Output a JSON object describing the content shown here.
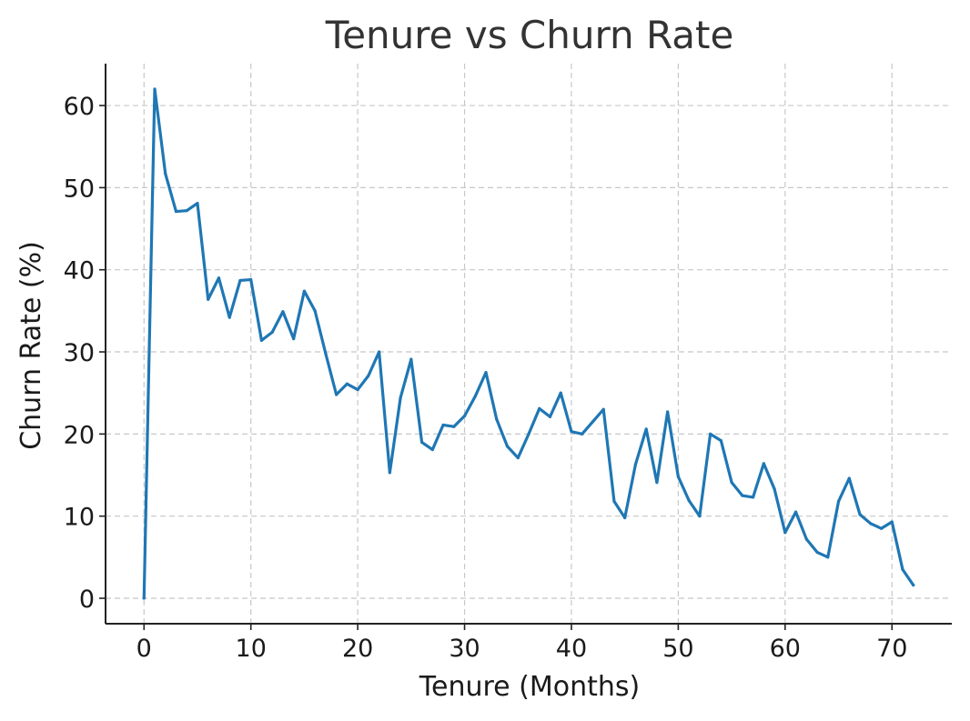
{
  "chart_data": {
    "type": "line",
    "title": "Tenure vs Churn Rate",
    "xlabel": "Tenure (Months)",
    "ylabel": "Churn Rate (%)",
    "xlim": [
      -3.6,
      75.6
    ],
    "ylim": [
      -3.1,
      65.1
    ],
    "xticks": [
      0,
      10,
      20,
      30,
      40,
      50,
      60,
      70
    ],
    "yticks": [
      0,
      10,
      20,
      30,
      40,
      50,
      60
    ],
    "grid": true,
    "line_color": "#1f77b4",
    "series": [
      {
        "x": [
          0,
          1,
          2,
          3,
          4,
          5,
          6,
          7,
          8,
          9,
          10,
          11,
          12,
          13,
          14,
          15,
          16,
          17,
          18,
          19,
          20,
          21,
          22,
          23,
          24,
          25,
          26,
          27,
          28,
          29,
          30,
          31,
          32,
          33,
          34,
          35,
          36,
          37,
          38,
          39,
          40,
          41,
          42,
          43,
          44,
          45,
          46,
          47,
          48,
          49,
          50,
          51,
          52,
          53,
          54,
          55,
          56,
          57,
          58,
          59,
          60,
          61,
          62,
          63,
          64,
          65,
          66,
          67,
          68,
          69,
          70,
          71,
          72
        ],
        "values": [
          0,
          62.0,
          51.7,
          47.1,
          47.2,
          48.1,
          36.4,
          39.0,
          34.2,
          38.7,
          38.8,
          31.4,
          32.4,
          34.9,
          31.6,
          37.4,
          35.0,
          29.8,
          24.8,
          26.1,
          25.4,
          27.1,
          30.0,
          15.3,
          24.4,
          29.1,
          19.0,
          18.1,
          21.1,
          20.9,
          22.2,
          24.6,
          27.5,
          21.8,
          18.5,
          17.1,
          20.0,
          23.1,
          22.1,
          25.0,
          20.3,
          20.0,
          21.5,
          23.0,
          11.8,
          9.8,
          16.3,
          20.6,
          14.1,
          22.7,
          14.8,
          11.9,
          10.0,
          20.0,
          19.2,
          14.1,
          12.5,
          12.3,
          16.4,
          13.3,
          8.0,
          10.5,
          7.2,
          5.6,
          5.0,
          11.8,
          14.6,
          10.2,
          9.1,
          8.5,
          9.3,
          3.5,
          1.6
        ]
      }
    ]
  }
}
